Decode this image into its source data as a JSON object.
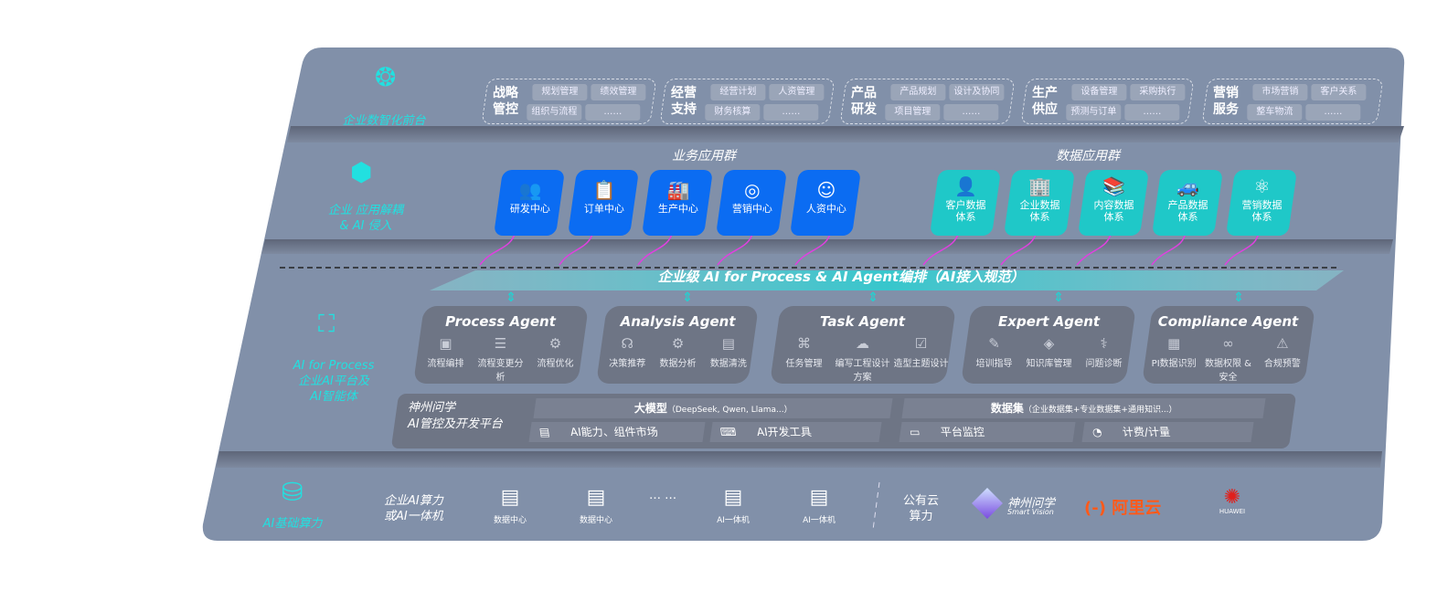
{
  "colors": {
    "panel": "#8190a9",
    "accent_cyan": "#22e0e0",
    "business_tile": "#0b6cf2",
    "data_tile": "#1fc8c8",
    "agent_card": "#6e7585",
    "connector": "#e040e0",
    "aliyun": "#ff5a1a",
    "huawei": "#e0201c"
  },
  "layers": {
    "front": {
      "label": "企业数智化前台",
      "icon": "brain-icon"
    },
    "apps": {
      "label_line1": "企业 应用解耦",
      "label_line2": "& AI 侵入",
      "icon": "network-node-icon"
    },
    "ai": {
      "label_line1": "AI for Process",
      "label_line2": "企业AI平台及",
      "label_line3": "AI智能体",
      "icon": "face-scan-icon"
    },
    "infra": {
      "label": "AI基础算力",
      "icon": "database-icon"
    }
  },
  "front_groups": [
    {
      "title1": "战略",
      "title2": "管控",
      "items": [
        "规划管理",
        "绩效管理",
        "组织与流程",
        "……"
      ]
    },
    {
      "title1": "经营",
      "title2": "支持",
      "items": [
        "经营计划",
        "人资管理",
        "财务核算",
        "……"
      ]
    },
    {
      "title1": "产品",
      "title2": "研发",
      "items": [
        "产品规划",
        "设计及协同",
        "项目管理",
        "……"
      ]
    },
    {
      "title1": "生产",
      "title2": "供应",
      "items": [
        "设备管理",
        "采购执行",
        "预测与订单",
        "……"
      ]
    },
    {
      "title1": "营销",
      "title2": "服务",
      "items": [
        "市场营销",
        "客户关系",
        "整车物流",
        "……"
      ]
    }
  ],
  "business_apps": {
    "title": "业务应用群",
    "items": [
      {
        "label": "研发中心",
        "icon": "users-icon"
      },
      {
        "label": "订单中心",
        "icon": "clipboard-icon"
      },
      {
        "label": "生产中心",
        "icon": "factory-icon"
      },
      {
        "label": "营销中心",
        "icon": "target-icon"
      },
      {
        "label": "人资中心",
        "icon": "person-icon"
      }
    ]
  },
  "data_apps": {
    "title": "数据应用群",
    "items": [
      {
        "line1": "客户数据",
        "line2": "体系",
        "icon": "user-icon"
      },
      {
        "line1": "企业数据",
        "line2": "体系",
        "icon": "building-icon"
      },
      {
        "line1": "内容数据",
        "line2": "体系",
        "icon": "books-icon"
      },
      {
        "line1": "产品数据",
        "line2": "体系",
        "icon": "car-icon"
      },
      {
        "line1": "营销数据",
        "line2": "体系",
        "icon": "atom-icon"
      }
    ]
  },
  "orchestration_banner": "企业级 AI for Process & AI Agent编排（AI接入规范）",
  "agents": [
    {
      "name": "Process Agent",
      "items": [
        {
          "l1": "流程编排",
          "icon": "chart-window-icon"
        },
        {
          "l1": "流程变更分析",
          "icon": "list-icon"
        },
        {
          "l1": "流程优化",
          "icon": "optimize-icon"
        }
      ]
    },
    {
      "name": "Analysis Agent",
      "items": [
        {
          "l1": "决策推荐",
          "icon": "head-icon"
        },
        {
          "l1": "数据分析",
          "icon": "gear-icon"
        },
        {
          "l1": "数据清洗",
          "icon": "clean-icon"
        }
      ]
    },
    {
      "name": "Task Agent",
      "items": [
        {
          "l1": "任务管理",
          "icon": "task-icon"
        },
        {
          "l1": "编写工程设计方案",
          "icon": "cloud-icon"
        },
        {
          "l1": "造型主题设计",
          "icon": "checklist-icon"
        }
      ]
    },
    {
      "name": "Expert Agent",
      "items": [
        {
          "l1": "培训指导",
          "icon": "pencil-ruler-icon"
        },
        {
          "l1": "知识库管理",
          "icon": "layers-icon"
        },
        {
          "l1": "问题诊断",
          "icon": "diagnose-icon"
        }
      ]
    },
    {
      "name": "Compliance Agent",
      "items": [
        {
          "l1": "PI数据识别",
          "icon": "id-card-icon"
        },
        {
          "l1": "数据权限 &",
          "l2": "安全",
          "icon": "link-icon"
        },
        {
          "l1": "合规预警",
          "icon": "alert-icon"
        }
      ]
    }
  ],
  "platform": {
    "title1": "神州问学",
    "title2": "AI管控及开发平台",
    "model_bar": "大模型",
    "model_bar_note": "（DeepSeek, Qwen, Llama...）",
    "dataset_bar": "数据集",
    "dataset_bar_note": "（企业数据集+专业数据集+通用知识...）",
    "tools": [
      {
        "label": "AI能力、组件市场",
        "icon": "market-icon"
      },
      {
        "label": "AI开发工具",
        "icon": "dev-tool-icon"
      },
      {
        "label": "平台监控",
        "icon": "monitor-icon"
      },
      {
        "label": "计费/计量",
        "icon": "gauge-icon"
      }
    ]
  },
  "infra": {
    "enterprise_line1": "企业AI算力",
    "enterprise_line2": "或AI一体机",
    "servers": [
      {
        "label": "数据中心",
        "icon": "server-icon"
      },
      {
        "label": "数据中心",
        "icon": "server-icon"
      },
      {
        "label": "AI一体机",
        "icon": "server-icon"
      },
      {
        "label": "AI一体机",
        "icon": "server-icon"
      }
    ],
    "ellipsis": "… …",
    "public_line1": "公有云",
    "public_line2": "算力",
    "vendors": [
      {
        "name": "神州问学",
        "sub": "Smart Vision"
      },
      {
        "name": "阿里云",
        "mark": "(-)"
      },
      {
        "name": "HUAWEI"
      }
    ]
  }
}
